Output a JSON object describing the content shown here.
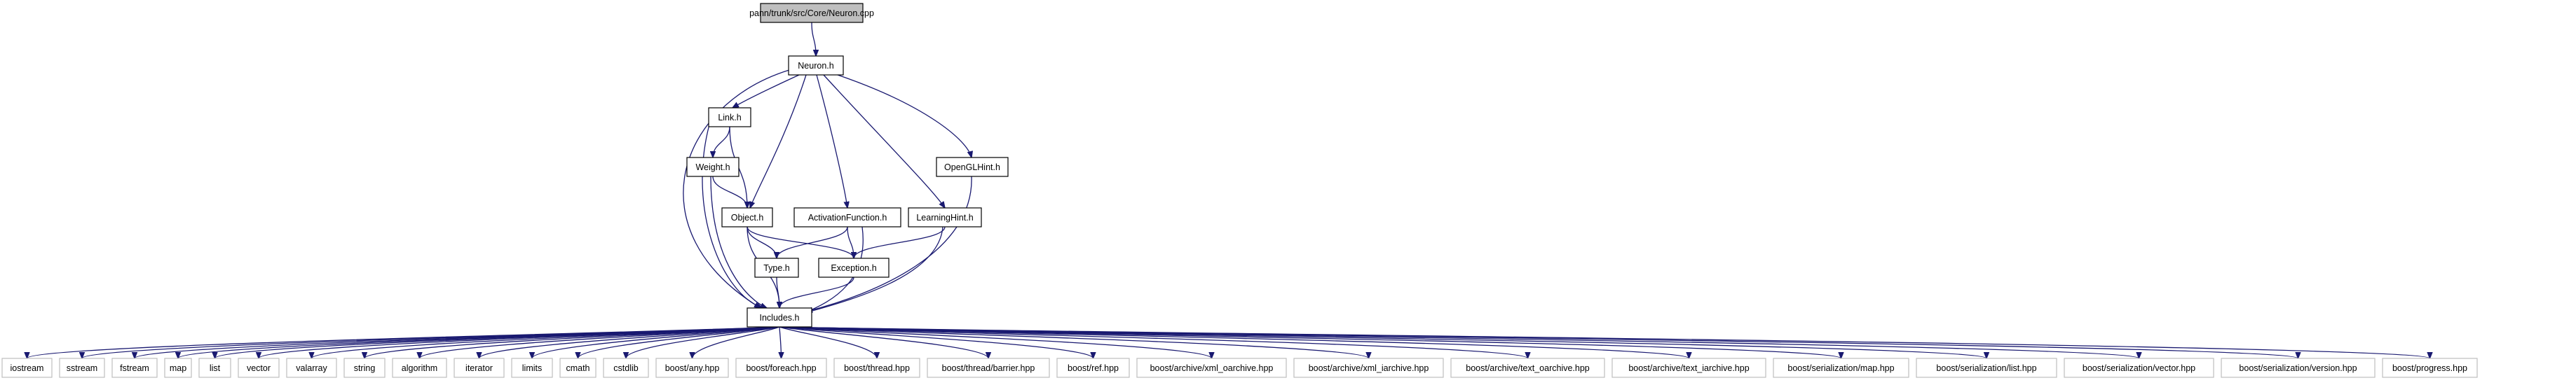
{
  "colors": {
    "edge": "#191970",
    "root_fill": "#bfbfbf",
    "border": "#000000",
    "external_border": "#bfbfbf",
    "background": "#ffffff"
  },
  "nodes": [
    {
      "id": "root",
      "label": "pann/trunk/src/Core/Neuron.cpp",
      "kind": "root"
    },
    {
      "id": "neuron_h",
      "label": "Neuron.h",
      "kind": "internal"
    },
    {
      "id": "link_h",
      "label": "Link.h",
      "kind": "internal"
    },
    {
      "id": "opengl_h",
      "label": "OpenGLHint.h",
      "kind": "internal"
    },
    {
      "id": "weight_h",
      "label": "Weight.h",
      "kind": "internal"
    },
    {
      "id": "object_h",
      "label": "Object.h",
      "kind": "internal"
    },
    {
      "id": "activation_h",
      "label": "ActivationFunction.h",
      "kind": "internal"
    },
    {
      "id": "learning_h",
      "label": "LearningHint.h",
      "kind": "internal"
    },
    {
      "id": "type_h",
      "label": "Type.h",
      "kind": "internal"
    },
    {
      "id": "exception_h",
      "label": "Exception.h",
      "kind": "internal"
    },
    {
      "id": "includes_h",
      "label": "Includes.h",
      "kind": "internal"
    },
    {
      "id": "e_iostream",
      "label": "iostream",
      "kind": "external"
    },
    {
      "id": "e_sstream",
      "label": "sstream",
      "kind": "external"
    },
    {
      "id": "e_fstream",
      "label": "fstream",
      "kind": "external"
    },
    {
      "id": "e_map",
      "label": "map",
      "kind": "external"
    },
    {
      "id": "e_list",
      "label": "list",
      "kind": "external"
    },
    {
      "id": "e_vector",
      "label": "vector",
      "kind": "external"
    },
    {
      "id": "e_valarray",
      "label": "valarray",
      "kind": "external"
    },
    {
      "id": "e_string",
      "label": "string",
      "kind": "external"
    },
    {
      "id": "e_algorithm",
      "label": "algorithm",
      "kind": "external"
    },
    {
      "id": "e_iterator",
      "label": "iterator",
      "kind": "external"
    },
    {
      "id": "e_limits",
      "label": "limits",
      "kind": "external"
    },
    {
      "id": "e_cmath",
      "label": "cmath",
      "kind": "external"
    },
    {
      "id": "e_cstdlib",
      "label": "cstdlib",
      "kind": "external"
    },
    {
      "id": "e_any",
      "label": "boost/any.hpp",
      "kind": "external"
    },
    {
      "id": "e_foreach",
      "label": "boost/foreach.hpp",
      "kind": "external"
    },
    {
      "id": "e_thread",
      "label": "boost/thread.hpp",
      "kind": "external"
    },
    {
      "id": "e_barrier",
      "label": "boost/thread/barrier.hpp",
      "kind": "external"
    },
    {
      "id": "e_ref",
      "label": "boost/ref.hpp",
      "kind": "external"
    },
    {
      "id": "e_xml_oarchive",
      "label": "boost/archive/xml_oarchive.hpp",
      "kind": "external"
    },
    {
      "id": "e_xml_iarchive",
      "label": "boost/archive/xml_iarchive.hpp",
      "kind": "external"
    },
    {
      "id": "e_text_oarchive",
      "label": "boost/archive/text_oarchive.hpp",
      "kind": "external"
    },
    {
      "id": "e_text_iarchive",
      "label": "boost/archive/text_iarchive.hpp",
      "kind": "external"
    },
    {
      "id": "e_ser_map",
      "label": "boost/serialization/map.hpp",
      "kind": "external"
    },
    {
      "id": "e_ser_list",
      "label": "boost/serialization/list.hpp",
      "kind": "external"
    },
    {
      "id": "e_ser_vector",
      "label": "boost/serialization/vector.hpp",
      "kind": "external"
    },
    {
      "id": "e_ser_version",
      "label": "boost/serialization/version.hpp",
      "kind": "external"
    },
    {
      "id": "e_progress",
      "label": "boost/progress.hpp",
      "kind": "external"
    }
  ],
  "edges": [
    [
      "root",
      "neuron_h"
    ],
    [
      "neuron_h",
      "link_h"
    ],
    [
      "neuron_h",
      "opengl_h"
    ],
    [
      "neuron_h",
      "object_h"
    ],
    [
      "neuron_h",
      "activation_h"
    ],
    [
      "neuron_h",
      "learning_h"
    ],
    [
      "neuron_h",
      "includes_h"
    ],
    [
      "link_h",
      "weight_h"
    ],
    [
      "link_h",
      "object_h"
    ],
    [
      "link_h",
      "includes_h"
    ],
    [
      "weight_h",
      "object_h"
    ],
    [
      "weight_h",
      "includes_h"
    ],
    [
      "object_h",
      "type_h"
    ],
    [
      "object_h",
      "exception_h"
    ],
    [
      "object_h",
      "includes_h"
    ],
    [
      "activation_h",
      "type_h"
    ],
    [
      "activation_h",
      "exception_h"
    ],
    [
      "activation_h",
      "includes_h"
    ],
    [
      "learning_h",
      "exception_h"
    ],
    [
      "learning_h",
      "includes_h"
    ],
    [
      "opengl_h",
      "includes_h"
    ],
    [
      "type_h",
      "includes_h"
    ],
    [
      "exception_h",
      "includes_h"
    ],
    [
      "includes_h",
      "e_iostream"
    ],
    [
      "includes_h",
      "e_sstream"
    ],
    [
      "includes_h",
      "e_fstream"
    ],
    [
      "includes_h",
      "e_map"
    ],
    [
      "includes_h",
      "e_list"
    ],
    [
      "includes_h",
      "e_vector"
    ],
    [
      "includes_h",
      "e_valarray"
    ],
    [
      "includes_h",
      "e_string"
    ],
    [
      "includes_h",
      "e_algorithm"
    ],
    [
      "includes_h",
      "e_iterator"
    ],
    [
      "includes_h",
      "e_limits"
    ],
    [
      "includes_h",
      "e_cmath"
    ],
    [
      "includes_h",
      "e_cstdlib"
    ],
    [
      "includes_h",
      "e_any"
    ],
    [
      "includes_h",
      "e_foreach"
    ],
    [
      "includes_h",
      "e_thread"
    ],
    [
      "includes_h",
      "e_barrier"
    ],
    [
      "includes_h",
      "e_ref"
    ],
    [
      "includes_h",
      "e_xml_oarchive"
    ],
    [
      "includes_h",
      "e_xml_iarchive"
    ],
    [
      "includes_h",
      "e_text_oarchive"
    ],
    [
      "includes_h",
      "e_text_iarchive"
    ],
    [
      "includes_h",
      "e_ser_map"
    ],
    [
      "includes_h",
      "e_ser_list"
    ],
    [
      "includes_h",
      "e_ser_vector"
    ],
    [
      "includes_h",
      "e_ser_version"
    ],
    [
      "includes_h",
      "e_progress"
    ]
  ]
}
